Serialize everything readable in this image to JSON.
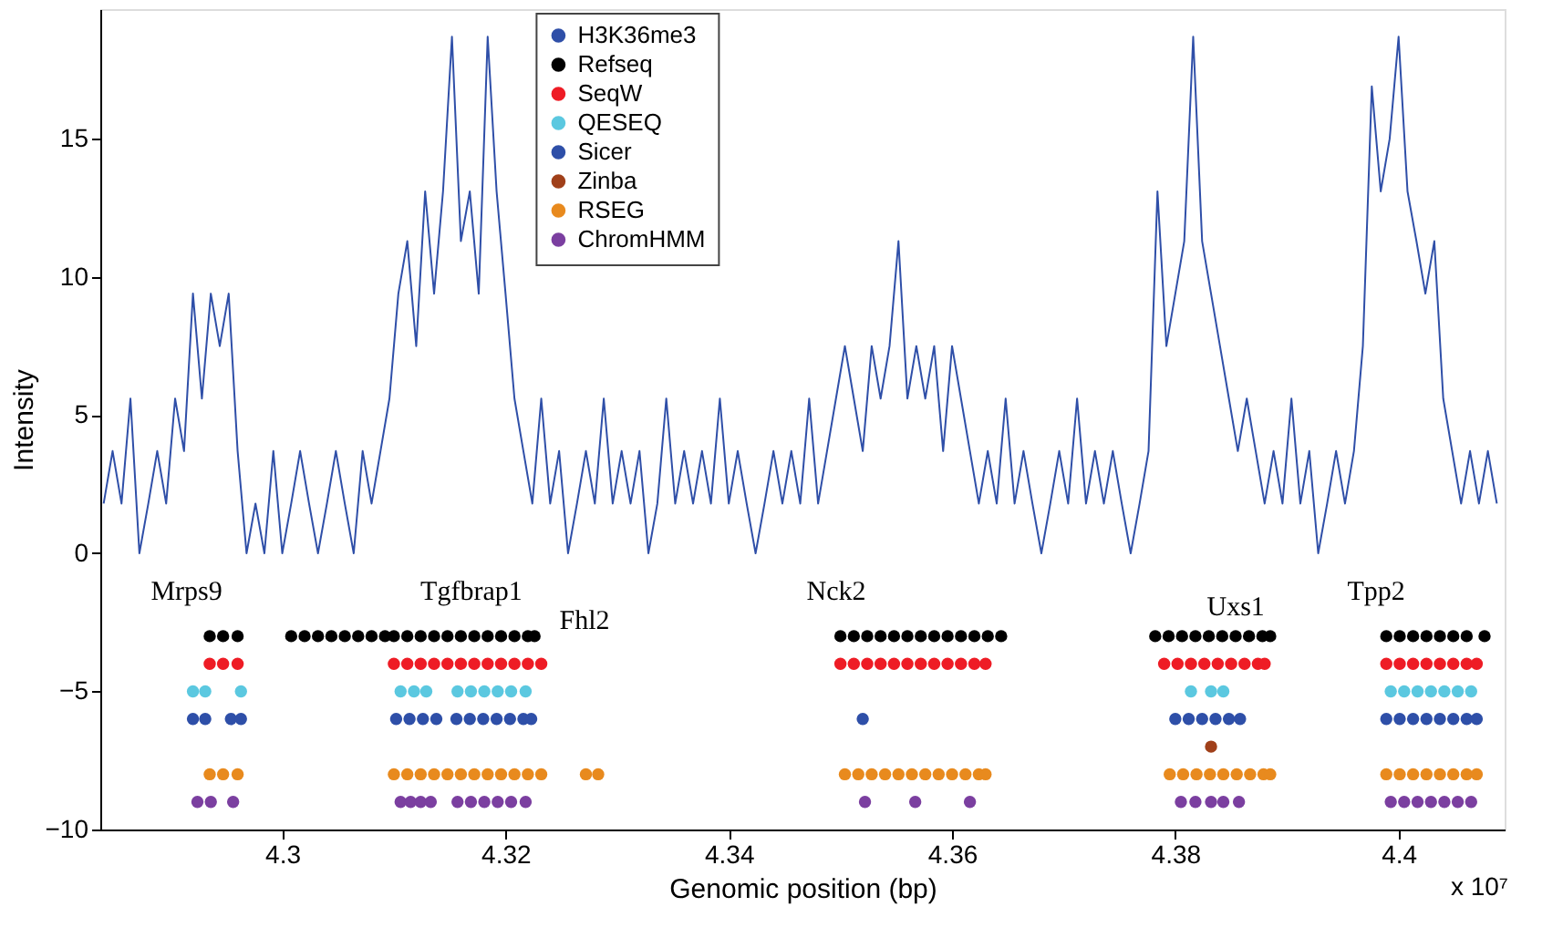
{
  "chart_data": {
    "type": "scatter",
    "xlabel": "Genomic position (bp)",
    "ylabel": "Intensity",
    "xlim": [
      4.2837,
      4.4095
    ],
    "xticks": [
      4.3,
      4.32,
      4.34,
      4.36,
      4.38,
      4.4
    ],
    "ylim": [
      -10,
      19.7
    ],
    "yticks": [
      -10,
      -5,
      0,
      5,
      10,
      15
    ],
    "grid": false,
    "legend": "top",
    "marker": "circle",
    "annotations": [
      "Mrps9",
      "Tgfbrap1",
      "Fhl2",
      "Nck2",
      "Uxs1",
      "Tpp2",
      "x 10⁷"
    ],
    "series": [
      {
        "name": "H3K36me3",
        "type": "line",
        "marker": "none",
        "line_style": "solid",
        "color": "#2f4fa8",
        "x": [
          4.284,
          4.2848,
          4.2856,
          4.2864,
          4.2872,
          4.288,
          4.2888,
          4.2896,
          4.2904,
          4.2912,
          4.292,
          4.2928,
          4.2936,
          4.2944,
          4.2952,
          4.296,
          4.2968,
          4.2976,
          4.2984,
          4.2992,
          4.3,
          4.3008,
          4.3016,
          4.3024,
          4.3032,
          4.304,
          4.3048,
          4.3056,
          4.3064,
          4.3072,
          4.308,
          4.3088,
          4.3096,
          4.3104,
          4.3112,
          4.312,
          4.3128,
          4.3136,
          4.3144,
          4.3152,
          4.316,
          4.3168,
          4.3176,
          4.3184,
          4.3192,
          4.32,
          4.3208,
          4.3216,
          4.3224,
          4.3232,
          4.324,
          4.3248,
          4.3256,
          4.3264,
          4.3272,
          4.328,
          4.3288,
          4.3296,
          4.3304,
          4.3312,
          4.332,
          4.3328,
          4.3336,
          4.3344,
          4.3352,
          4.336,
          4.3368,
          4.3376,
          4.3384,
          4.3392,
          4.34,
          4.3408,
          4.3416,
          4.3424,
          4.3432,
          4.344,
          4.3448,
          4.3456,
          4.3464,
          4.3472,
          4.348,
          4.3488,
          4.3496,
          4.3504,
          4.3512,
          4.352,
          4.3528,
          4.3536,
          4.3544,
          4.3552,
          4.356,
          4.3568,
          4.3576,
          4.3584,
          4.3592,
          4.36,
          4.3608,
          4.3616,
          4.3624,
          4.3632,
          4.364,
          4.3648,
          4.3656,
          4.3664,
          4.3672,
          4.368,
          4.3688,
          4.3696,
          4.3704,
          4.3712,
          4.372,
          4.3728,
          4.3736,
          4.3744,
          4.3752,
          4.376,
          4.3768,
          4.3776,
          4.3784,
          4.3792,
          4.38,
          4.3808,
          4.3816,
          4.3824,
          4.3832,
          4.384,
          4.3848,
          4.3856,
          4.3864,
          4.3872,
          4.388,
          4.3888,
          4.3896,
          4.3904,
          4.3912,
          4.392,
          4.3928,
          4.3936,
          4.3944,
          4.3952,
          4.396,
          4.3968,
          4.3976,
          4.3984,
          4.3992,
          4.4,
          4.4008,
          4.4016,
          4.4024,
          4.4032,
          4.404,
          4.4048,
          4.4056,
          4.4064,
          4.4072,
          4.408,
          4.4088
        ],
        "values": [
          1.8,
          3.7,
          1.8,
          5.6,
          0,
          1.8,
          3.7,
          1.8,
          5.6,
          3.7,
          9.4,
          5.6,
          9.4,
          7.5,
          9.4,
          3.7,
          0,
          1.8,
          0,
          3.7,
          0,
          1.8,
          3.7,
          1.8,
          0,
          1.8,
          3.7,
          1.8,
          0,
          3.7,
          1.8,
          3.7,
          5.6,
          9.4,
          11.3,
          7.5,
          13.1,
          9.4,
          13.1,
          18.7,
          11.3,
          13.1,
          9.4,
          18.7,
          13.1,
          9.4,
          5.6,
          3.7,
          1.8,
          5.6,
          1.8,
          3.7,
          0,
          1.8,
          3.7,
          1.8,
          5.6,
          1.8,
          3.7,
          1.8,
          3.7,
          0,
          1.8,
          5.6,
          1.8,
          3.7,
          1.8,
          3.7,
          1.8,
          5.6,
          1.8,
          3.7,
          1.8,
          0,
          1.8,
          3.7,
          1.8,
          3.7,
          1.8,
          5.6,
          1.8,
          3.7,
          5.6,
          7.5,
          5.6,
          3.7,
          7.5,
          5.6,
          7.5,
          11.3,
          5.6,
          7.5,
          5.6,
          7.5,
          3.7,
          7.5,
          5.6,
          3.7,
          1.8,
          3.7,
          1.8,
          5.6,
          1.8,
          3.7,
          1.8,
          0,
          1.8,
          3.7,
          1.8,
          5.6,
          1.8,
          3.7,
          1.8,
          3.7,
          1.8,
          0,
          1.8,
          3.7,
          13.1,
          7.5,
          9.4,
          11.3,
          18.7,
          11.3,
          9.4,
          7.5,
          5.6,
          3.7,
          5.6,
          3.7,
          1.8,
          3.7,
          1.8,
          5.6,
          1.8,
          3.7,
          0,
          1.8,
          3.7,
          1.8,
          3.7,
          7.5,
          16.9,
          13.1,
          15,
          18.7,
          13.1,
          11.3,
          9.4,
          11.3,
          5.6,
          3.7,
          1.8,
          3.7,
          1.8,
          3.7,
          1.8
        ]
      },
      {
        "name": "Refseq",
        "color": "#000000",
        "x": [
          4.2935,
          4.2947,
          4.296,
          4.3008,
          4.302,
          4.3032,
          4.3044,
          4.3056,
          4.3068,
          4.308,
          4.3092,
          4.31,
          4.3112,
          4.3124,
          4.3136,
          4.3148,
          4.316,
          4.3172,
          4.3184,
          4.3196,
          4.3208,
          4.322,
          4.3226,
          4.35,
          4.3512,
          4.3524,
          4.3536,
          4.3548,
          4.356,
          4.3572,
          4.3584,
          4.3596,
          4.3608,
          4.362,
          4.3632,
          4.3644,
          4.3782,
          4.3794,
          4.3806,
          4.3818,
          4.383,
          4.3842,
          4.3854,
          4.3866,
          4.3878,
          4.3885,
          4.3989,
          4.4001,
          4.4013,
          4.4025,
          4.4037,
          4.4049,
          4.4061,
          4.4077
        ],
        "values": [
          -3,
          -3,
          -3,
          -3,
          -3,
          -3,
          -3,
          -3,
          -3,
          -3,
          -3,
          -3,
          -3,
          -3,
          -3,
          -3,
          -3,
          -3,
          -3,
          -3,
          -3,
          -3,
          -3,
          -3,
          -3,
          -3,
          -3,
          -3,
          -3,
          -3,
          -3,
          -3,
          -3,
          -3,
          -3,
          -3,
          -3,
          -3,
          -3,
          -3,
          -3,
          -3,
          -3,
          -3,
          -3,
          -3,
          -3,
          -3,
          -3,
          -3,
          -3,
          -3,
          -3,
          -3
        ]
      },
      {
        "name": "SeqW",
        "color": "#ee1c25",
        "x": [
          4.2935,
          4.2947,
          4.296,
          4.31,
          4.3112,
          4.3124,
          4.3136,
          4.3148,
          4.316,
          4.3172,
          4.3184,
          4.3196,
          4.3208,
          4.322,
          4.3232,
          4.35,
          4.3512,
          4.3524,
          4.3536,
          4.3548,
          4.356,
          4.3572,
          4.3584,
          4.3596,
          4.3608,
          4.362,
          4.363,
          4.379,
          4.3802,
          4.3814,
          4.3826,
          4.3838,
          4.385,
          4.3862,
          4.3874,
          4.388,
          4.3989,
          4.4001,
          4.4013,
          4.4025,
          4.4037,
          4.4049,
          4.4061,
          4.407
        ],
        "values": [
          -4,
          -4,
          -4,
          -4,
          -4,
          -4,
          -4,
          -4,
          -4,
          -4,
          -4,
          -4,
          -4,
          -4,
          -4,
          -4,
          -4,
          -4,
          -4,
          -4,
          -4,
          -4,
          -4,
          -4,
          -4,
          -4,
          -4,
          -4,
          -4,
          -4,
          -4,
          -4,
          -4,
          -4,
          -4,
          -4,
          -4,
          -4,
          -4,
          -4,
          -4,
          -4,
          -4,
          -4
        ]
      },
      {
        "name": "QESEQ",
        "color": "#5bc8e0",
        "x": [
          4.292,
          4.2931,
          4.2963,
          4.3106,
          4.3118,
          4.3129,
          4.3157,
          4.3169,
          4.3181,
          4.3193,
          4.3205,
          4.3218,
          4.3814,
          4.3832,
          4.3843,
          4.3993,
          4.4005,
          4.4017,
          4.4029,
          4.4041,
          4.4053,
          4.4065
        ],
        "values": [
          -5,
          -5,
          -5,
          -5,
          -5,
          -5,
          -5,
          -5,
          -5,
          -5,
          -5,
          -5,
          -5,
          -5,
          -5,
          -5,
          -5,
          -5,
          -5,
          -5,
          -5,
          -5
        ]
      },
      {
        "name": "Sicer",
        "color": "#2e4fa8",
        "x": [
          4.292,
          4.2931,
          4.2954,
          4.2963,
          4.3102,
          4.3114,
          4.3126,
          4.3138,
          4.3156,
          4.3168,
          4.318,
          4.3192,
          4.3204,
          4.3216,
          4.3223,
          4.352,
          4.38,
          4.3812,
          4.3824,
          4.3836,
          4.3848,
          4.3858,
          4.3989,
          4.4001,
          4.4013,
          4.4025,
          4.4037,
          4.4049,
          4.4061,
          4.407
        ],
        "values": [
          -6,
          -6,
          -6,
          -6,
          -6,
          -6,
          -6,
          -6,
          -6,
          -6,
          -6,
          -6,
          -6,
          -6,
          -6,
          -6,
          -6,
          -6,
          -6,
          -6,
          -6,
          -6,
          -6,
          -6,
          -6,
          -6,
          -6,
          -6,
          -6,
          -6
        ]
      },
      {
        "name": "Zinba",
        "color": "#a0401a",
        "x": [
          4.3832
        ],
        "values": [
          -7
        ]
      },
      {
        "name": "RSEG",
        "color": "#e88a1e",
        "x": [
          4.2935,
          4.2947,
          4.296,
          4.31,
          4.3112,
          4.3124,
          4.3136,
          4.3148,
          4.316,
          4.3172,
          4.3184,
          4.3196,
          4.3208,
          4.322,
          4.3232,
          4.3272,
          4.3283,
          4.3504,
          4.3516,
          4.3528,
          4.354,
          4.3552,
          4.3564,
          4.3576,
          4.3588,
          4.36,
          4.3612,
          4.3624,
          4.363,
          4.3795,
          4.3807,
          4.3819,
          4.3831,
          4.3843,
          4.3855,
          4.3867,
          4.3879,
          4.3885,
          4.3989,
          4.4001,
          4.4013,
          4.4025,
          4.4037,
          4.4049,
          4.4061,
          4.407
        ],
        "values": [
          -8,
          -8,
          -8,
          -8,
          -8,
          -8,
          -8,
          -8,
          -8,
          -8,
          -8,
          -8,
          -8,
          -8,
          -8,
          -8,
          -8,
          -8,
          -8,
          -8,
          -8,
          -8,
          -8,
          -8,
          -8,
          -8,
          -8,
          -8,
          -8,
          -8,
          -8,
          -8,
          -8,
          -8,
          -8,
          -8,
          -8,
          -8,
          -8,
          -8,
          -8,
          -8,
          -8,
          -8,
          -8,
          -8
        ]
      },
      {
        "name": "ChromHMM",
        "color": "#7b3fa0",
        "x": [
          4.2924,
          4.2936,
          4.2956,
          4.3106,
          4.3115,
          4.3124,
          4.3133,
          4.3157,
          4.3169,
          4.3181,
          4.3193,
          4.3205,
          4.3218,
          4.3522,
          4.3567,
          4.3616,
          4.3805,
          4.3818,
          4.3832,
          4.3843,
          4.3857,
          4.3993,
          4.4005,
          4.4017,
          4.4029,
          4.4041,
          4.4053,
          4.4065
        ],
        "values": [
          -9,
          -9,
          -9,
          -9,
          -9,
          -9,
          -9,
          -9,
          -9,
          -9,
          -9,
          -9,
          -9,
          -9,
          -9,
          -9,
          -9,
          -9,
          -9,
          -9,
          -9,
          -9,
          -9,
          -9,
          -9,
          -9,
          -9,
          -9
        ]
      }
    ]
  }
}
